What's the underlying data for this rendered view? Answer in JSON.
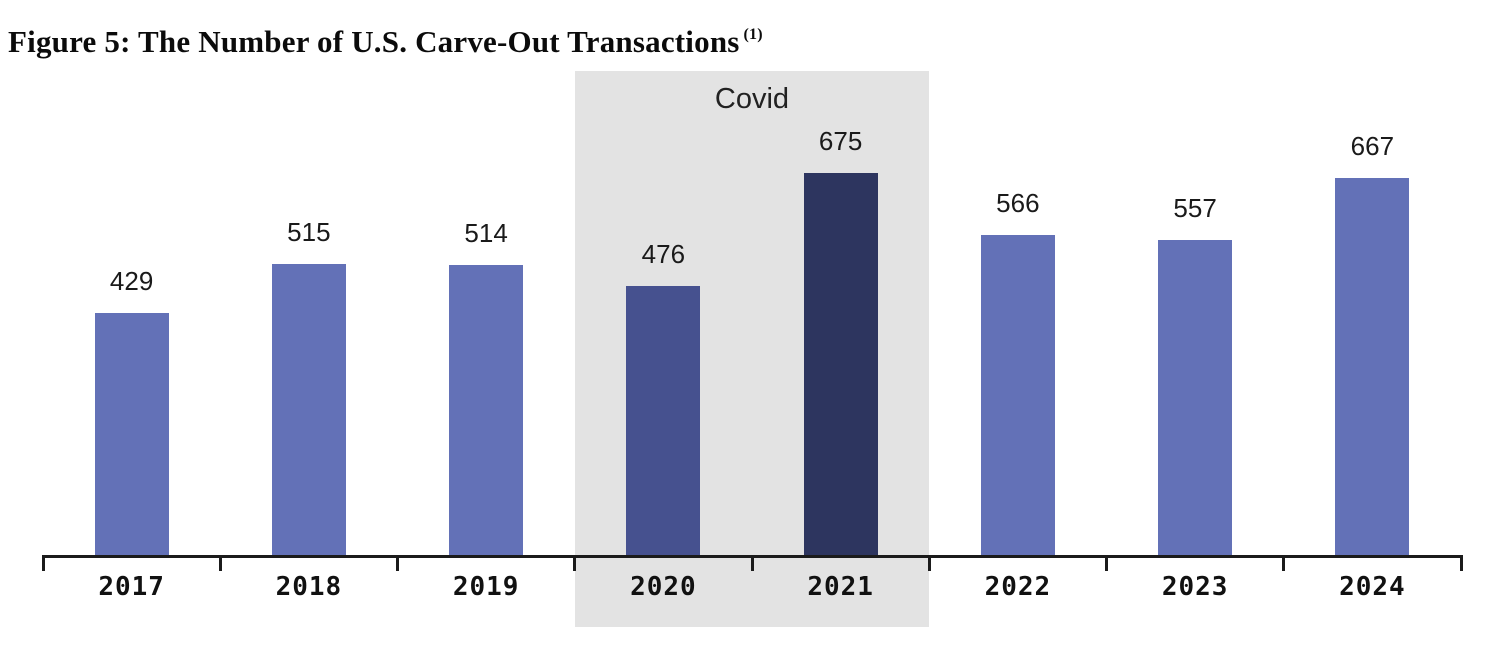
{
  "figure": {
    "title": "Figure 5: The Number of U.S. Carve-Out Transactions",
    "title_superscript": "(1)"
  },
  "chart_data": {
    "type": "bar",
    "title": "Figure 5: The Number of U.S. Carve-Out Transactions (1)",
    "categories": [
      "2017",
      "2018",
      "2019",
      "2020",
      "2021",
      "2022",
      "2023",
      "2024"
    ],
    "values": [
      429,
      515,
      514,
      476,
      675,
      566,
      557,
      667
    ],
    "xlabel": "",
    "ylabel": "",
    "ylim": [
      0,
      700
    ],
    "grid": false,
    "legend": null,
    "value_labels_shown": true,
    "bar_colors": [
      "#6371b7",
      "#6371b7",
      "#6371b7",
      "#46518f",
      "#2d355f",
      "#6371b7",
      "#6371b7",
      "#6371b7"
    ],
    "highlight_region": {
      "label": "Covid",
      "categories": [
        "2020",
        "2021"
      ],
      "span_start_index": 3,
      "span_end_index": 4,
      "color": "#e3e3e3"
    },
    "colors": {
      "bar_default": "#6371b7",
      "bar_2020": "#46518f",
      "bar_2021": "#2d355f",
      "band": "#e3e3e3",
      "axis": "#1b1b1b",
      "text": "#1a1a1a"
    }
  }
}
